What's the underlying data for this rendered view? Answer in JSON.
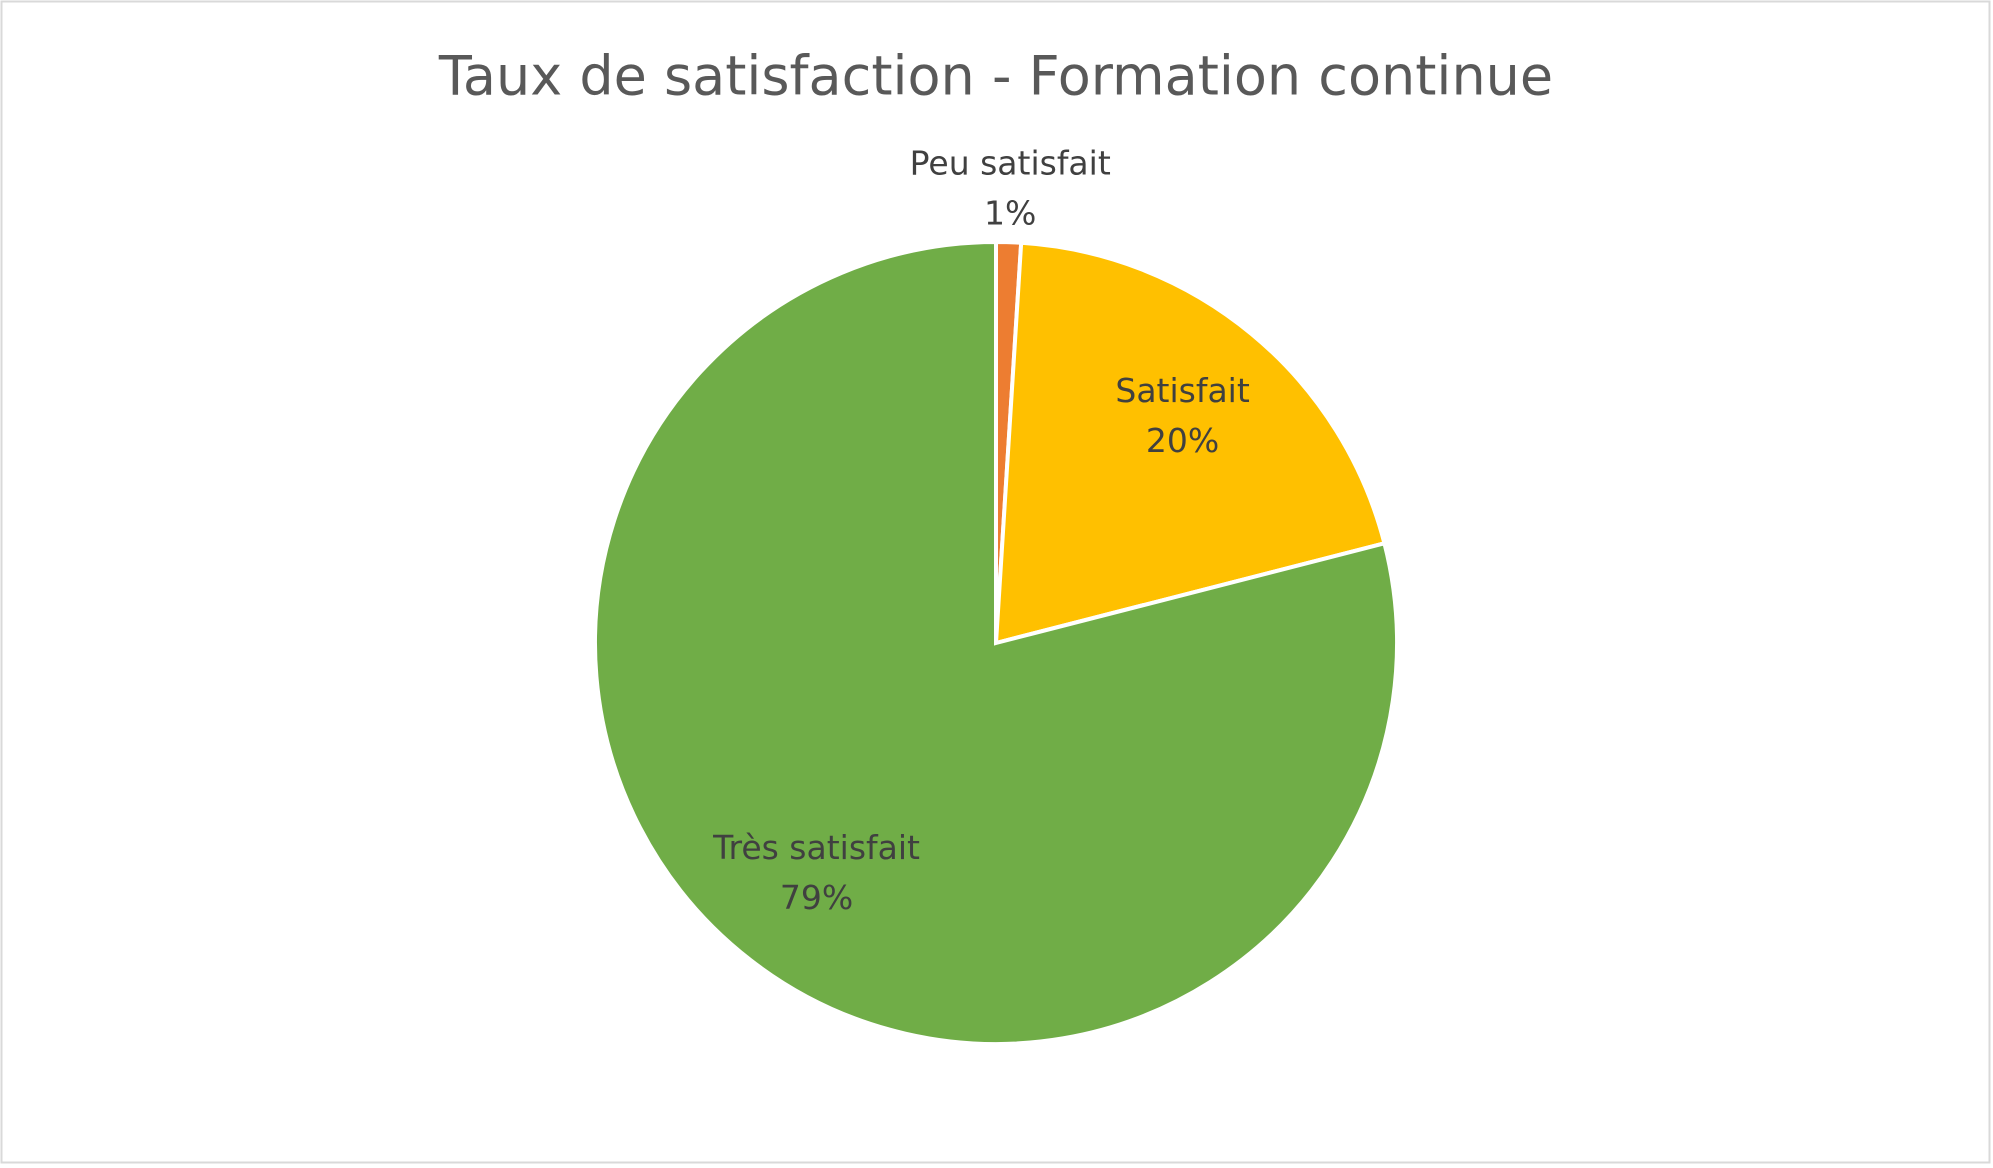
{
  "chart_data": {
    "type": "pie",
    "title": "Taux de satisfaction - Formation continue",
    "categories": [
      "Peu satisfait",
      "Satisfait",
      "Très satisfait"
    ],
    "values": [
      1,
      20,
      79
    ],
    "value_labels": [
      "1%",
      "20%",
      "79%"
    ],
    "colors": [
      "#ED7D31",
      "#FFC000",
      "#70AD47"
    ]
  }
}
